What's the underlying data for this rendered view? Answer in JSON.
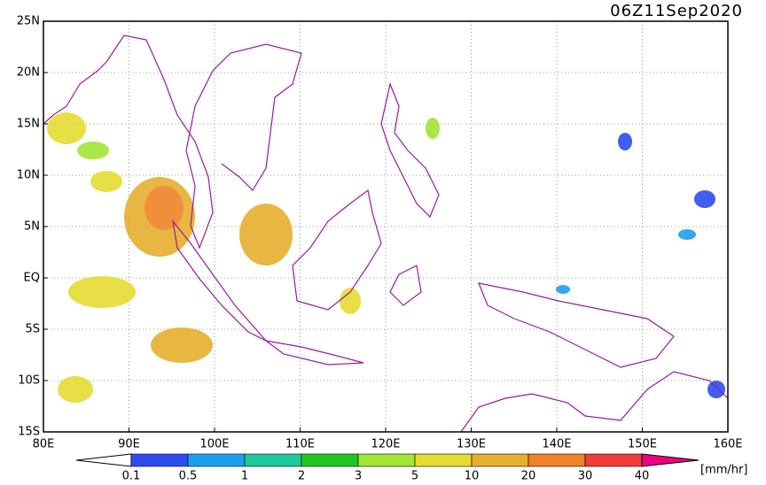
{
  "title": "06Z11Sep2020",
  "lon_labels": [
    "80E",
    "90E",
    "100E",
    "110E",
    "120E",
    "130E",
    "140E",
    "150E",
    "160E"
  ],
  "lat_labels": [
    "25N",
    "20N",
    "15N",
    "10N",
    "5N",
    "EQ",
    "5S",
    "10S",
    "15S"
  ],
  "colorbar": {
    "labels": [
      "0.1",
      "0.5",
      "1",
      "2",
      "3",
      "5",
      "10",
      "20",
      "30",
      "40"
    ],
    "colors": [
      "#ffffff",
      "#2d4df0",
      "#1d9ff0",
      "#1ec89a",
      "#1ec81e",
      "#a0e632",
      "#e6dc32",
      "#e6af2d",
      "#f08228",
      "#f03c3c",
      "#f00082"
    ],
    "unit": "[mm/hr]"
  }
}
